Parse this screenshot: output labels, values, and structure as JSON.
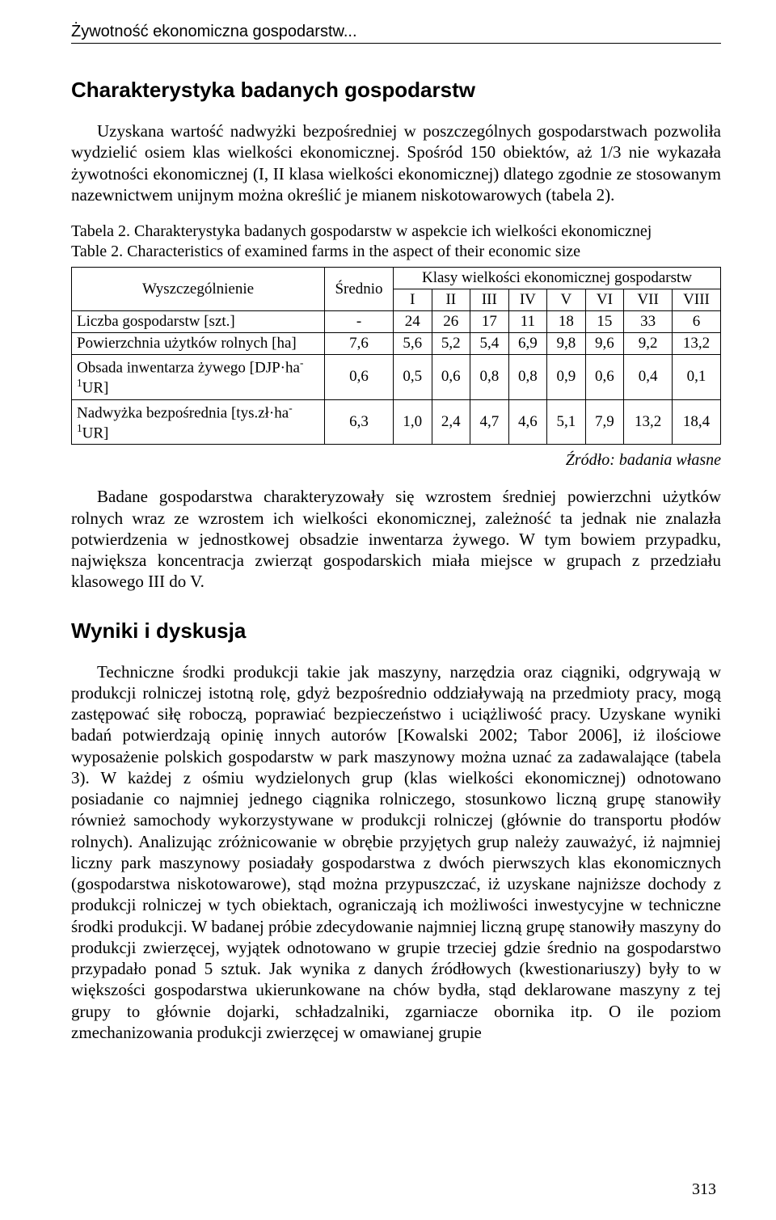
{
  "running_head": "Żywotność ekonomiczna gospodarstw...",
  "section1": {
    "heading": "Charakterystyka badanych gospodarstw",
    "para": "Uzyskana wartość nadwyżki bezpośredniej w poszczególnych gospodarstwach pozwoliła wydzielić osiem klas wielkości ekonomicznej. Spośród 150 obiektów, aż 1/3 nie wykazała żywotności ekonomicznej (I, II klasa wielkości ekonomicznej) dlatego zgodnie ze stosowanym nazewnictwem unijnym można określić je mianem niskotowarowych (tabela 2)."
  },
  "table2": {
    "caption_pl_prefix": "Tabela 2.",
    "caption_pl_rest": " Charakterystyka badanych gospodarstw w aspekcie ich wielkości ekonomicznej",
    "caption_en_prefix": "Table 2.",
    "caption_en_rest": "   Characteristics of examined farms in the aspect of their economic size",
    "col_label": "Wyszczególnienie",
    "col_mean": "Średnio",
    "col_group": "Klasy wielkości ekonomicznej gospodarstw",
    "classes": [
      "I",
      "II",
      "III",
      "IV",
      "V",
      "VI",
      "VII",
      "VIII"
    ],
    "rows": [
      {
        "label": "Liczba gospodarstw [szt.]",
        "mean": "-",
        "vals": [
          "24",
          "26",
          "17",
          "11",
          "18",
          "15",
          "33",
          "6"
        ]
      },
      {
        "label": "Powierzchnia użytków rolnych [ha]",
        "mean": "7,6",
        "vals": [
          "5,6",
          "5,2",
          "5,4",
          "6,9",
          "9,8",
          "9,6",
          "9,2",
          "13,2"
        ]
      },
      {
        "label_html": "Obsada inwentarza żywego [DJP·ha<sup>-1</sup>UR]",
        "mean": "0,6",
        "vals": [
          "0,5",
          "0,6",
          "0,8",
          "0,8",
          "0,9",
          "0,6",
          "0,4",
          "0,1"
        ]
      },
      {
        "label_html": "Nadwyżka bezpośrednia [tys.zł·ha<sup>-1</sup>UR]",
        "mean": "6,3",
        "vals": [
          "1,0",
          "2,4",
          "4,7",
          "4,6",
          "5,1",
          "7,9",
          "13,2",
          "18,4"
        ]
      }
    ],
    "source": "Źródło: badania własne"
  },
  "section2_para": "Badane gospodarstwa charakteryzowały się wzrostem średniej powierzchni użytków rolnych wraz ze wzrostem ich wielkości ekonomicznej, zależność ta jednak nie znalazła potwierdzenia w jednostkowej obsadzie inwentarza żywego. W tym bowiem przypadku, największa koncentracja zwierząt gospodarskich miała miejsce w grupach z przedziału klasowego III do V.",
  "section3": {
    "heading": "Wyniki i dyskusja",
    "para": "Techniczne środki produkcji takie jak maszyny, narzędzia oraz ciągniki, odgrywają w produkcji rolniczej istotną rolę, gdyż bezpośrednio oddziaływają na przedmioty pracy, mogą zastępować siłę roboczą, poprawiać bezpieczeństwo i uciążliwość pracy. Uzyskane wyniki badań potwierdzają opinię innych autorów [Kowalski 2002; Tabor 2006], iż ilościowe wyposażenie polskich gospodarstw w park maszynowy można uznać za zadawalające (tabela 3). W każdej z ośmiu wydzielonych grup (klas wielkości ekonomicznej) odnotowano posiadanie co najmniej jednego ciągnika rolniczego, stosunkowo liczną grupę stanowiły również samochody wykorzystywane w produkcji rolniczej (głównie do transportu płodów rolnych). Analizując zróżnicowanie w obrębie przyjętych grup należy zauważyć, iż najmniej liczny park maszynowy posiadały gospodarstwa z dwóch pierwszych klas ekonomicznych (gospodarstwa niskotowarowe), stąd można przypuszczać, iż uzyskane najniższe dochody z produkcji rolniczej w tych obiektach, ograniczają ich możliwości inwestycyjne w techniczne środki produkcji. W badanej próbie zdecydowanie najmniej liczną grupę stanowiły maszyny do produkcji zwierzęcej, wyjątek odnotowano w grupie trzeciej gdzie średnio na gospodarstwo przypadało ponad 5 sztuk. Jak wynika z danych źródłowych (kwestionariuszy) były to w większości gospodarstwa ukierunkowane na chów bydła, stąd deklarowane maszyny z tej grupy to głównie dojarki, schładzalniki, zgarniacze obornika itp. O ile poziom zmechanizowania produkcji zwierzęcej w omawianej grupie"
  },
  "page_number": "313"
}
